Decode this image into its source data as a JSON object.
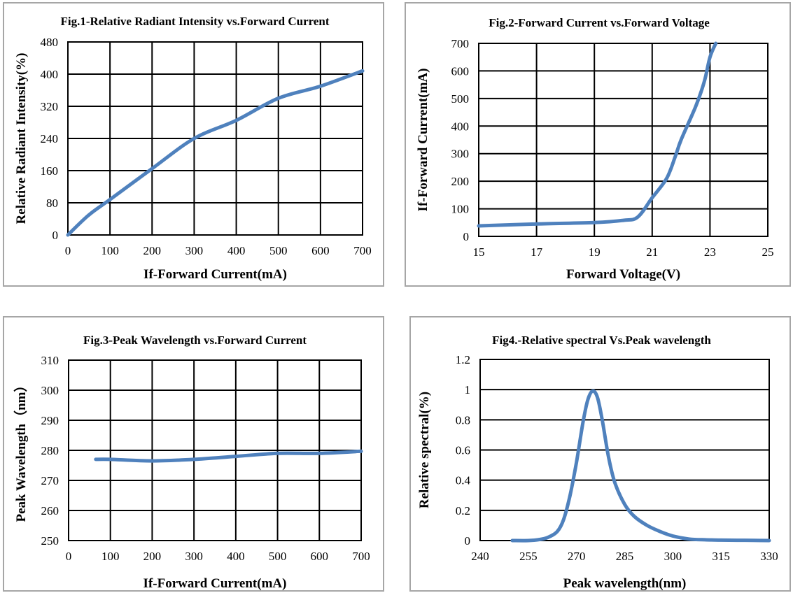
{
  "chart_data": [
    {
      "type": "line",
      "title": "Fig.1-Relative Radiant Intensity vs.Forward Current",
      "xlabel": "If-Forward Current(mA)",
      "ylabel": "Relative Radiant Intensity(%)",
      "xlim": [
        0,
        700
      ],
      "ylim": [
        0,
        480
      ],
      "x_ticks": [
        0,
        100,
        200,
        300,
        400,
        500,
        600,
        700
      ],
      "y_ticks": [
        0,
        80,
        160,
        240,
        320,
        400,
        480
      ],
      "grid": true,
      "color": "#4f81bd",
      "series": [
        {
          "x": [
            0,
            50,
            100,
            200,
            300,
            400,
            500,
            600,
            700
          ],
          "y": [
            0,
            50,
            88,
            165,
            240,
            285,
            340,
            370,
            408
          ]
        }
      ]
    },
    {
      "type": "line",
      "title": "Fig.2-Forward Current vs.Forward Voltage",
      "xlabel": "Forward Voltage(V)",
      "ylabel": "If-Forward Current(mA)",
      "xlim": [
        15,
        25
      ],
      "ylim": [
        0,
        700
      ],
      "x_ticks": [
        15,
        17,
        19,
        21,
        23,
        25
      ],
      "y_ticks": [
        0,
        100,
        200,
        300,
        400,
        500,
        600,
        700
      ],
      "grid": true,
      "color": "#4f81bd",
      "series": [
        {
          "x": [
            15,
            17,
            19,
            20,
            20.5,
            21,
            21.5,
            21.8,
            22,
            22.5,
            22.8,
            23,
            23.2
          ],
          "y": [
            38,
            45,
            50,
            58,
            70,
            140,
            210,
            290,
            350,
            470,
            560,
            650,
            700
          ]
        }
      ]
    },
    {
      "type": "line",
      "title": "Fig.3-Peak Wavelength vs.Forward Current",
      "xlabel": "If-Forward Current(mA)",
      "ylabel": "Peak Wavelength（nm）",
      "xlim": [
        0,
        700
      ],
      "ylim": [
        250,
        310
      ],
      "x_ticks": [
        0,
        100,
        200,
        300,
        400,
        500,
        600,
        700
      ],
      "y_ticks": [
        250,
        260,
        270,
        280,
        290,
        300,
        310
      ],
      "grid": true,
      "color": "#4f81bd",
      "series": [
        {
          "x": [
            65,
            100,
            200,
            300,
            400,
            500,
            600,
            700
          ],
          "y": [
            277,
            277,
            276.5,
            277,
            278,
            279,
            279,
            279.7
          ]
        }
      ]
    },
    {
      "type": "line",
      "title": "Fig4.-Relative spectral Vs.Peak wavelength",
      "xlabel": "Peak wavelength(nm)",
      "ylabel": "Relative spectral(%)",
      "xlim": [
        240,
        330
      ],
      "ylim": [
        0,
        1.2
      ],
      "x_ticks": [
        240,
        255,
        270,
        285,
        300,
        315,
        330
      ],
      "y_ticks": [
        0,
        0.2,
        0.4,
        0.6,
        0.8,
        1,
        1.2
      ],
      "grid": "horizontal",
      "color": "#4f81bd",
      "series": [
        {
          "x": [
            250,
            255,
            258,
            261,
            264,
            266,
            268,
            270,
            272,
            273.5,
            275,
            276.5,
            278,
            280,
            282,
            285,
            288,
            292,
            296,
            300,
            305,
            310,
            315,
            320,
            325,
            330
          ],
          "y": [
            0,
            0,
            0.005,
            0.02,
            0.06,
            0.14,
            0.3,
            0.52,
            0.78,
            0.93,
            0.99,
            0.95,
            0.8,
            0.55,
            0.38,
            0.24,
            0.16,
            0.1,
            0.06,
            0.03,
            0.01,
            0.005,
            0.003,
            0.002,
            0.001,
            0
          ]
        }
      ]
    }
  ]
}
